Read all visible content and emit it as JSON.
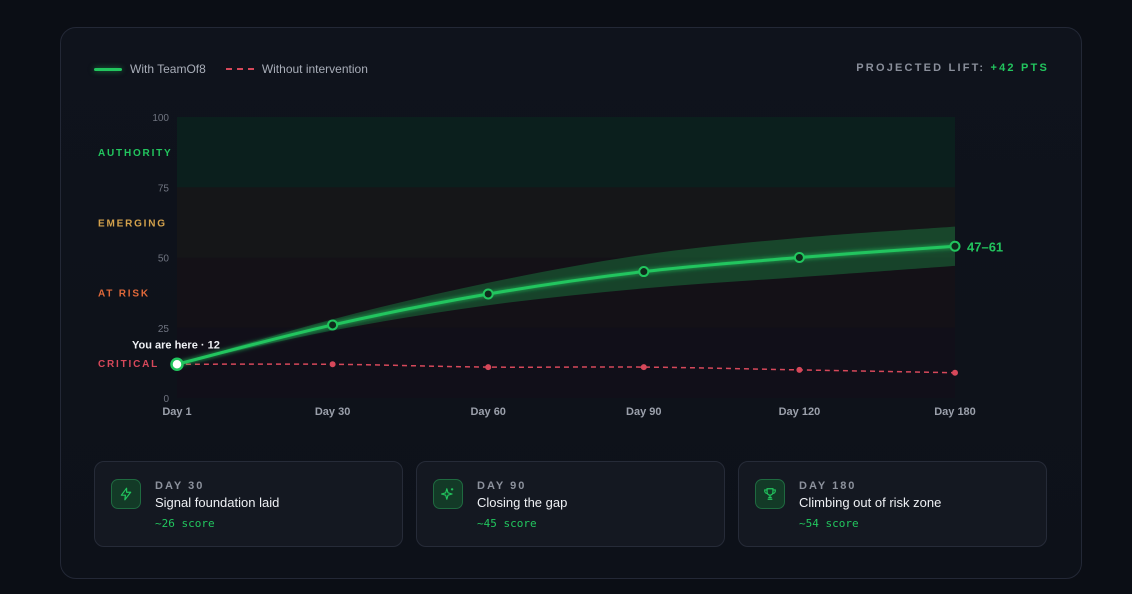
{
  "legend": {
    "with_label": "With TeamOf8",
    "without_label": "Without intervention"
  },
  "lift": {
    "label": "PROJECTED LIFT:",
    "value": "+42 PTS"
  },
  "chart_data": {
    "type": "line",
    "x_categories": [
      "Day 1",
      "Day 30",
      "Day 60",
      "Day 90",
      "Day 120",
      "Day 180"
    ],
    "ylim": [
      0,
      100
    ],
    "y_ticks": [
      "0",
      "25",
      "50",
      "75",
      "100"
    ],
    "zones": [
      {
        "label": "AUTHORITY",
        "from": 75,
        "to": 100,
        "color": "#22c55e"
      },
      {
        "label": "EMERGING",
        "from": 50,
        "to": 75,
        "color": "#d4a24c"
      },
      {
        "label": "AT RISK",
        "from": 25,
        "to": 50,
        "color": "#e0693a"
      },
      {
        "label": "CRITICAL",
        "from": 0,
        "to": 25,
        "color": "#d6485a"
      }
    ],
    "series": [
      {
        "name": "With TeamOf8",
        "color": "#22c55e",
        "values": [
          12,
          26,
          37,
          45,
          50,
          54
        ],
        "band_low": [
          12,
          24,
          33,
          39,
          43,
          47
        ],
        "band_high": [
          12,
          28,
          41,
          51,
          57,
          61
        ]
      },
      {
        "name": "Without intervention",
        "color": "#d6485a",
        "values": [
          12,
          12,
          11,
          11,
          10,
          9
        ]
      }
    ],
    "annotation_start": "You are here · 12",
    "annotation_end": "47–61"
  },
  "milestones": [
    {
      "day": "DAY 30",
      "title": "Signal foundation laid",
      "score": "~26 score",
      "icon": "lightning-icon"
    },
    {
      "day": "DAY 90",
      "title": "Closing the gap",
      "score": "~45 score",
      "icon": "sparkle-icon"
    },
    {
      "day": "DAY 180",
      "title": "Climbing out of risk zone",
      "score": "~54 score",
      "icon": "trophy-icon"
    }
  ]
}
